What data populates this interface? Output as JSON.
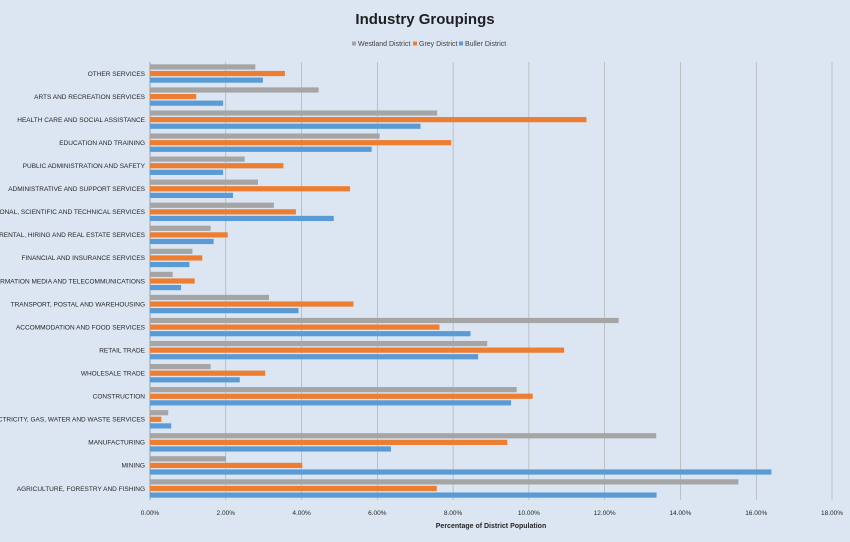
{
  "chart_data": {
    "type": "bar",
    "orientation": "horizontal",
    "title": "Industry Groupings",
    "xlabel": "Percentage of District Population",
    "ylabel": "",
    "xlim": [
      0,
      0.18
    ],
    "x_ticks": [
      0,
      0.02,
      0.04,
      0.06,
      0.08,
      0.1,
      0.12,
      0.14,
      0.16,
      0.18
    ],
    "x_tick_labels": [
      "0.00%",
      "2.00%",
      "4.00%",
      "6.00%",
      "8.00%",
      "10.00%",
      "12.00%",
      "14.00%",
      "16.00%",
      "18.00%"
    ],
    "grid": "vertical gridlines",
    "legend_position": "top",
    "categories": [
      "OTHER SERVICES",
      "ARTS AND RECREATION SERVICES",
      "HEALTH CARE AND SOCIAL ASSISTANCE",
      "EDUCATION AND TRAINING",
      "PUBLIC ADMINISTRATION AND SAFETY",
      "ADMINISTRATIVE AND SUPPORT SERVICES",
      "PROFESSIONAL, SCIENTIFIC AND TECHNICAL SERVICES",
      "RENTAL, HIRING AND REAL ESTATE SERVICES",
      "FINANCIAL AND INSURANCE SERVICES",
      "INFORMATION MEDIA AND TELECOMMUNICATIONS",
      "TRANSPORT, POSTAL AND WAREHOUSING",
      "ACCOMMODATION AND FOOD SERVICES",
      "RETAIL TRADE",
      "WHOLESALE TRADE",
      "CONSTRUCTION",
      "ELECTRICITY, GAS, WATER AND WASTE SERVICES",
      "MANUFACTURING",
      "MINING",
      "AGRICULTURE, FORESTRY AND FISHING"
    ],
    "series": [
      {
        "name": "Westland District",
        "color": "#a5a5a5",
        "values": [
          0.0278,
          0.0445,
          0.0758,
          0.0606,
          0.025,
          0.0285,
          0.0327,
          0.016,
          0.0112,
          0.006,
          0.0314,
          0.1237,
          0.089,
          0.016,
          0.0968,
          0.0048,
          0.1336,
          0.02,
          0.1553
        ]
      },
      {
        "name": "Grey District",
        "color": "#ed7d31",
        "values": [
          0.0356,
          0.0122,
          0.1152,
          0.0795,
          0.0352,
          0.0528,
          0.0385,
          0.0205,
          0.0138,
          0.0118,
          0.0537,
          0.0764,
          0.1093,
          0.0304,
          0.101,
          0.003,
          0.0943,
          0.0402,
          0.0757
        ]
      },
      {
        "name": "Buller District",
        "color": "#5b9bd5",
        "values": [
          0.0298,
          0.0193,
          0.0714,
          0.0585,
          0.0193,
          0.0219,
          0.0485,
          0.0168,
          0.0104,
          0.0082,
          0.0392,
          0.0846,
          0.0866,
          0.0237,
          0.0953,
          0.0056,
          0.0636,
          0.164,
          0.1337
        ]
      }
    ]
  }
}
